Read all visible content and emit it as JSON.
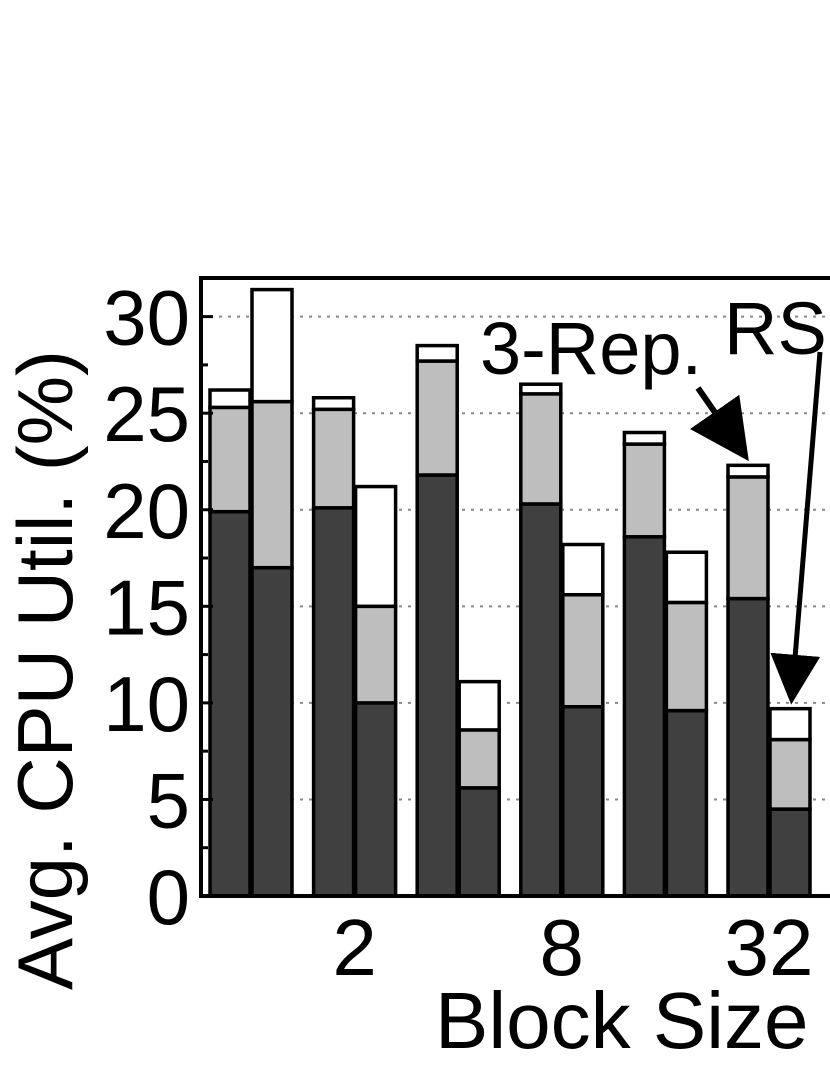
{
  "chart_data": {
    "type": "bar",
    "stacked": true,
    "ylabel": "Avg. CPU Util. (%)",
    "xlabel": "Block Size",
    "ylim": [
      0,
      32
    ],
    "yticks": [
      0,
      5,
      10,
      15,
      20,
      25,
      30
    ],
    "xtick_labels": [
      "2",
      "8",
      "32"
    ],
    "grid": true,
    "colors": {
      "bottom": "#404040",
      "middle": "#bebebe",
      "top": "#ffffff",
      "gridline": "#888888"
    },
    "annotations": [
      {
        "text": "3-Rep.",
        "points_to_group": 5,
        "points_to_bar": 0
      },
      {
        "text": "RS",
        "points_to_group": 5,
        "points_to_bar": 1
      }
    ],
    "groups": [
      {
        "label": "",
        "bars": [
          {
            "bottom": 19.9,
            "middle": 5.4,
            "top": 0.9
          },
          {
            "bottom": 17.0,
            "middle": 8.6,
            "top": 5.8
          }
        ]
      },
      {
        "label": "2",
        "bars": [
          {
            "bottom": 20.1,
            "middle": 5.1,
            "top": 0.6
          },
          {
            "bottom": 10.0,
            "middle": 5.0,
            "top": 6.2
          }
        ]
      },
      {
        "label": "",
        "bars": [
          {
            "bottom": 21.8,
            "middle": 5.9,
            "top": 0.8
          },
          {
            "bottom": 5.6,
            "middle": 3.0,
            "top": 2.5
          }
        ]
      },
      {
        "label": "8",
        "bars": [
          {
            "bottom": 20.3,
            "middle": 5.7,
            "top": 0.5
          },
          {
            "bottom": 9.8,
            "middle": 5.8,
            "top": 2.6
          }
        ]
      },
      {
        "label": "",
        "bars": [
          {
            "bottom": 18.6,
            "middle": 4.8,
            "top": 0.6
          },
          {
            "bottom": 9.6,
            "middle": 5.6,
            "top": 2.6
          }
        ]
      },
      {
        "label": "32",
        "bars": [
          {
            "bottom": 15.4,
            "middle": 6.3,
            "top": 0.6
          },
          {
            "bottom": 4.5,
            "middle": 3.6,
            "top": 1.6
          }
        ]
      }
    ]
  }
}
